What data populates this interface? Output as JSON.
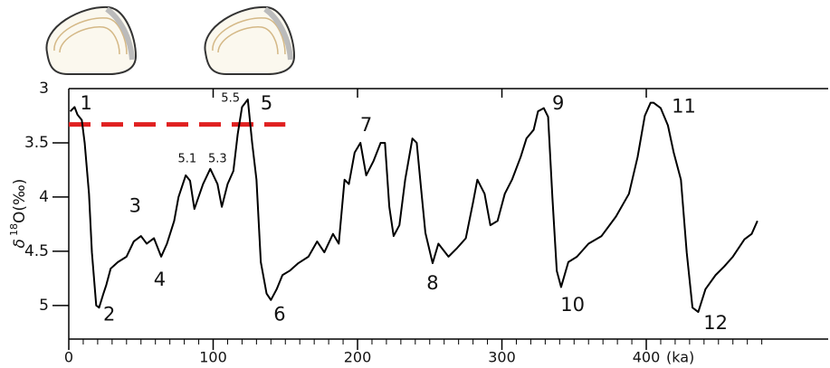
{
  "chart_data": {
    "type": "line",
    "x_label": "(ka)",
    "y_label": {
      "symbol": "δ",
      "sup": "18",
      "text": "O(‰)"
    },
    "xlim": [
      0,
      526
    ],
    "ylim": [
      5.31,
      3
    ],
    "y_inverted": true,
    "xticks": [
      0,
      100,
      200,
      300,
      400
    ],
    "xminorticks": [
      10,
      20,
      30,
      40,
      50,
      60,
      70,
      80,
      90,
      110,
      120,
      130,
      140,
      150,
      160,
      170,
      180,
      190,
      210,
      220,
      230,
      240,
      250,
      260,
      270,
      280,
      290,
      310,
      320,
      330,
      340,
      350,
      360,
      370,
      380,
      390,
      410,
      420,
      430,
      440,
      450,
      460,
      470,
      480
    ],
    "yticks": [
      3,
      3.5,
      4,
      4.5,
      5
    ],
    "series": [
      {
        "color": "#000000",
        "x": [
          1,
          4,
          6,
          9,
          11,
          14,
          16,
          19,
          21,
          24,
          26,
          29,
          34,
          40,
          45,
          50,
          54,
          59,
          64,
          68,
          73,
          76,
          81,
          84,
          87,
          93,
          98,
          103,
          106,
          110,
          114,
          117,
          120,
          124,
          127,
          130,
          133,
          137,
          140,
          144,
          148,
          153,
          159,
          166,
          172,
          177,
          183,
          187,
          191,
          194,
          198,
          202,
          206,
          211,
          216,
          219,
          222,
          225,
          229,
          233,
          238,
          241,
          244,
          247,
          252,
          256,
          263,
          269,
          275,
          280,
          283,
          288,
          292,
          297,
          302,
          307,
          313,
          317,
          322,
          325,
          329,
          332,
          335,
          338,
          341,
          346,
          352,
          360,
          369,
          379,
          388,
          394,
          399,
          403,
          405,
          410,
          415,
          419,
          424,
          428,
          432,
          436,
          441,
          448,
          454,
          460,
          468,
          473,
          477
        ],
        "values": [
          3.21,
          3.17,
          3.24,
          3.29,
          3.5,
          3.97,
          4.51,
          5.0,
          5.02,
          4.89,
          4.81,
          4.66,
          4.6,
          4.55,
          4.41,
          4.36,
          4.43,
          4.38,
          4.55,
          4.43,
          4.22,
          4.0,
          3.8,
          3.85,
          4.11,
          3.88,
          3.74,
          3.88,
          4.09,
          3.88,
          3.76,
          3.42,
          3.17,
          3.1,
          3.5,
          3.84,
          4.6,
          4.89,
          4.95,
          4.85,
          4.72,
          4.68,
          4.61,
          4.55,
          4.41,
          4.51,
          4.34,
          4.43,
          3.84,
          3.88,
          3.59,
          3.5,
          3.8,
          3.67,
          3.5,
          3.5,
          4.09,
          4.36,
          4.26,
          3.84,
          3.46,
          3.5,
          3.92,
          4.33,
          4.61,
          4.43,
          4.55,
          4.47,
          4.38,
          4.05,
          3.84,
          3.97,
          4.26,
          4.22,
          3.97,
          3.84,
          3.63,
          3.46,
          3.38,
          3.21,
          3.18,
          3.26,
          4.01,
          4.68,
          4.83,
          4.6,
          4.55,
          4.43,
          4.36,
          4.18,
          3.97,
          3.63,
          3.25,
          3.13,
          3.13,
          3.18,
          3.34,
          3.59,
          3.84,
          4.51,
          5.02,
          5.06,
          4.85,
          4.72,
          4.64,
          4.55,
          4.39,
          4.34,
          4.22
        ]
      }
    ],
    "reference_line": {
      "y": 3.33,
      "x": [
        0,
        150
      ],
      "color": "#e02020"
    },
    "annotations": [
      {
        "text": "1",
        "x": 12,
        "y": 3.14
      },
      {
        "text": "2",
        "x": 28,
        "y": 5.09
      },
      {
        "text": "3",
        "x": 46,
        "y": 4.09
      },
      {
        "text": "4",
        "x": 63,
        "y": 4.77
      },
      {
        "text": "5.5",
        "x": 112,
        "y": 3.09,
        "small": true
      },
      {
        "text": "5",
        "x": 137,
        "y": 3.14
      },
      {
        "text": "5.1",
        "x": 82,
        "y": 3.65,
        "small": true
      },
      {
        "text": "5.3",
        "x": 103,
        "y": 3.65,
        "small": true
      },
      {
        "text": "6",
        "x": 146,
        "y": 5.09
      },
      {
        "text": "7",
        "x": 206,
        "y": 3.34
      },
      {
        "text": "8",
        "x": 252,
        "y": 4.8
      },
      {
        "text": "9",
        "x": 339,
        "y": 3.14
      },
      {
        "text": "10",
        "x": 349,
        "y": 5.0
      },
      {
        "text": "11",
        "x": 426,
        "y": 3.17
      },
      {
        "text": "12",
        "x": 448,
        "y": 5.17
      }
    ]
  }
}
